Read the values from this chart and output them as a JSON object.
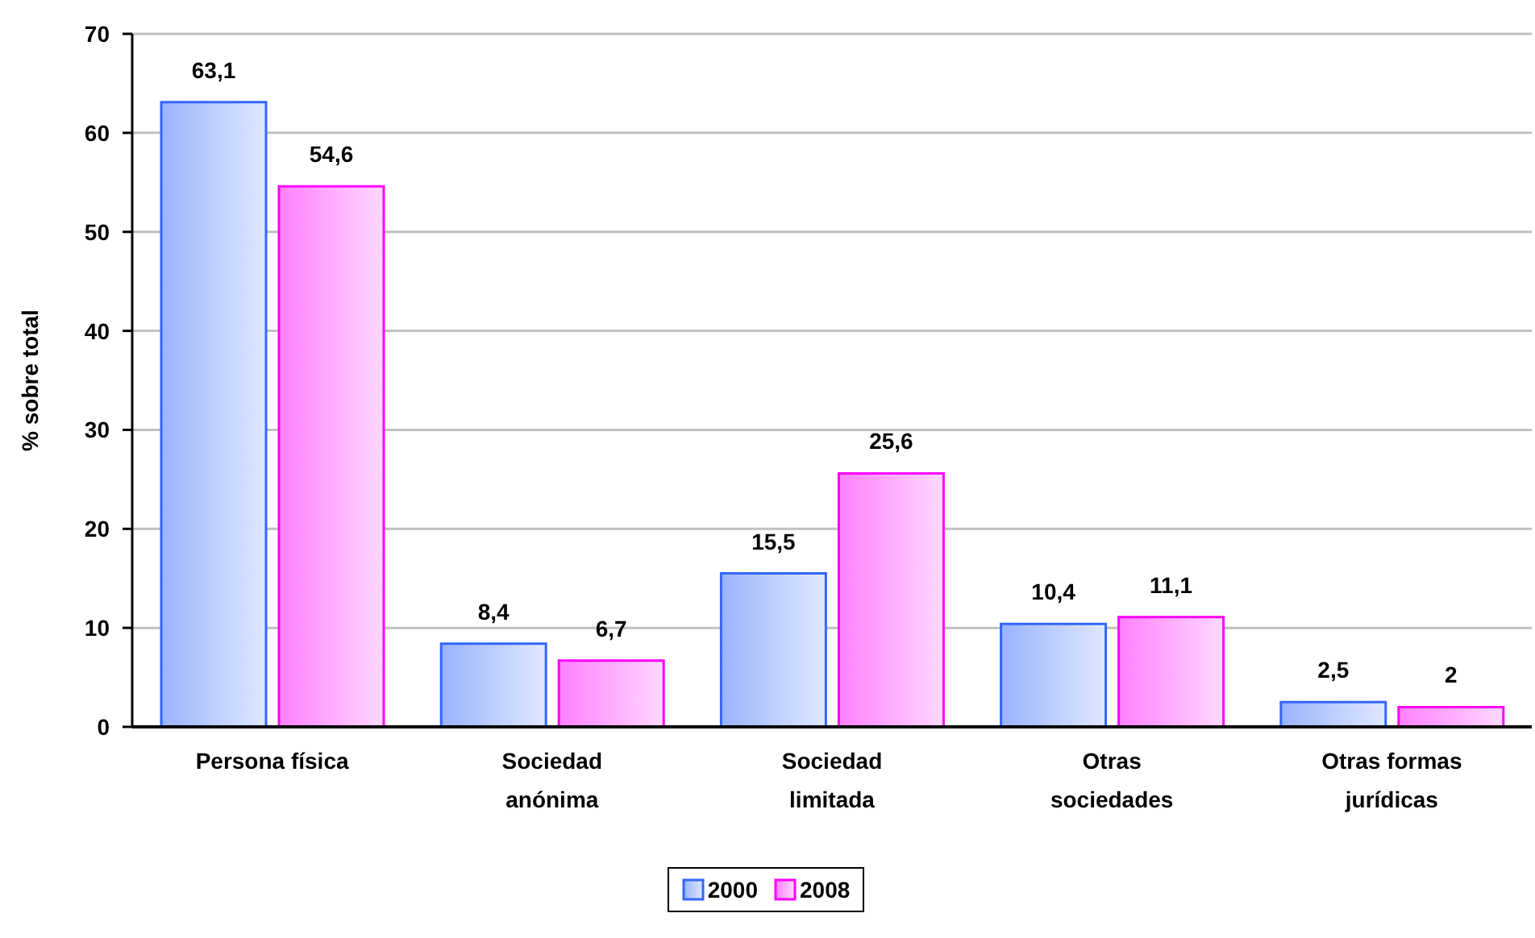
{
  "chart_data": {
    "type": "bar",
    "categories": [
      "Persona física",
      "Sociedad anónima",
      "Sociedad limitada",
      "Otras sociedades",
      "Otras formas jurídicas"
    ],
    "series": [
      {
        "name": "2000",
        "color": "#3366ff",
        "values": [
          63.1,
          8.4,
          15.5,
          10.4,
          2.5
        ],
        "value_labels": [
          "63,1",
          "8,4",
          "15,5",
          "10,4",
          "2,5"
        ]
      },
      {
        "name": "2008",
        "color": "#ff00ff",
        "values": [
          54.6,
          6.7,
          25.6,
          11.1,
          2
        ],
        "value_labels": [
          "54,6",
          "6,7",
          "25,6",
          "11,1",
          "2"
        ]
      }
    ],
    "ylabel": "% sobre total",
    "ylim": [
      0,
      70
    ],
    "yticks": [
      0,
      10,
      20,
      30,
      40,
      50,
      60,
      70
    ],
    "grid": "y",
    "legend": "bottom"
  }
}
